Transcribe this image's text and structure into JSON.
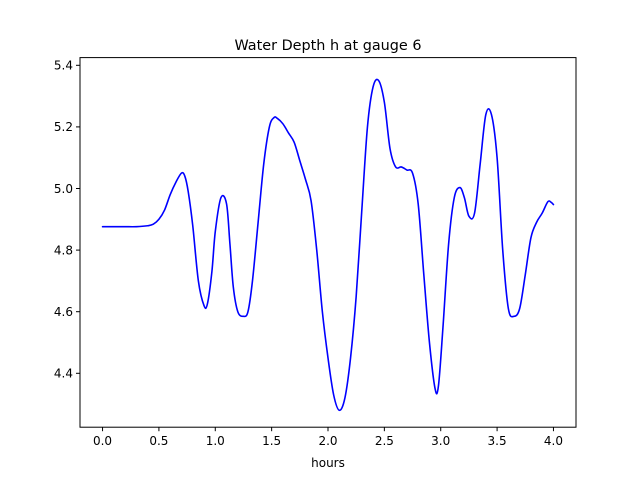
{
  "chart_data": {
    "type": "line",
    "title": "Water Depth h at gauge 6",
    "xlabel": "hours",
    "ylabel": "",
    "xlim": [
      -0.2,
      4.2
    ],
    "ylim": [
      4.225,
      5.425
    ],
    "x_ticks": [
      0.0,
      0.5,
      1.0,
      1.5,
      2.0,
      2.5,
      3.0,
      3.5,
      4.0
    ],
    "x_tick_labels": [
      "0.0",
      "0.5",
      "1.0",
      "1.5",
      "2.0",
      "2.5",
      "3.0",
      "3.5",
      "4.0"
    ],
    "y_ticks": [
      4.4,
      4.6,
      4.8,
      5.0,
      5.2,
      5.4
    ],
    "y_tick_labels": [
      "4.4",
      "4.6",
      "4.8",
      "5.0",
      "5.2",
      "5.4"
    ],
    "grid": false,
    "series": [
      {
        "color": "#0000ff",
        "x": [
          0.0,
          0.1,
          0.2,
          0.3,
          0.4,
          0.45,
          0.5,
          0.55,
          0.6,
          0.65,
          0.7,
          0.73,
          0.76,
          0.8,
          0.85,
          0.9,
          0.93,
          0.97,
          1.0,
          1.05,
          1.1,
          1.13,
          1.16,
          1.2,
          1.25,
          1.29,
          1.33,
          1.38,
          1.43,
          1.48,
          1.52,
          1.55,
          1.6,
          1.65,
          1.7,
          1.75,
          1.8,
          1.85,
          1.9,
          1.95,
          2.0,
          2.05,
          2.1,
          2.15,
          2.2,
          2.25,
          2.3,
          2.35,
          2.4,
          2.45,
          2.5,
          2.55,
          2.6,
          2.65,
          2.7,
          2.75,
          2.8,
          2.85,
          2.9,
          2.95,
          2.98,
          3.02,
          3.07,
          3.12,
          3.17,
          3.21,
          3.25,
          3.3,
          3.35,
          3.4,
          3.45,
          3.5,
          3.55,
          3.6,
          3.65,
          3.7,
          3.75,
          3.8,
          3.85,
          3.9,
          3.95,
          3.98,
          4.0
        ],
        "y": [
          4.876,
          4.876,
          4.876,
          4.876,
          4.879,
          4.884,
          4.9,
          4.93,
          4.98,
          5.02,
          5.05,
          5.04,
          4.99,
          4.88,
          4.7,
          4.62,
          4.625,
          4.73,
          4.86,
          4.97,
          4.95,
          4.82,
          4.68,
          4.6,
          4.585,
          4.6,
          4.7,
          4.89,
          5.08,
          5.2,
          5.23,
          5.228,
          5.21,
          5.18,
          5.15,
          5.09,
          5.03,
          4.96,
          4.8,
          4.6,
          4.45,
          4.33,
          4.28,
          4.32,
          4.45,
          4.65,
          4.93,
          5.2,
          5.33,
          5.35,
          5.28,
          5.13,
          5.07,
          5.07,
          5.06,
          5.05,
          4.95,
          4.72,
          4.5,
          4.35,
          4.36,
          4.55,
          4.82,
          4.97,
          5.003,
          4.97,
          4.91,
          4.92,
          5.08,
          5.24,
          5.24,
          5.1,
          4.8,
          4.61,
          4.585,
          4.61,
          4.72,
          4.84,
          4.89,
          4.92,
          4.957,
          4.955,
          4.948
        ]
      }
    ]
  }
}
